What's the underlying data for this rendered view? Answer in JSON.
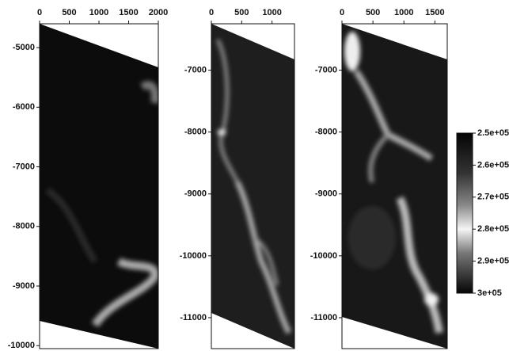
{
  "chart_data": [
    {
      "type": "image",
      "xlim": [
        0,
        2000
      ],
      "xticks": [
        0,
        500,
        1000,
        1500,
        2000
      ],
      "ylim": [
        -10050,
        -4600
      ],
      "yticks": [
        -5000,
        -6000,
        -7000,
        -8000,
        -9000,
        -10000
      ]
    },
    {
      "type": "image",
      "xlim": [
        0,
        1370
      ],
      "xticks": [
        0,
        500,
        1000
      ],
      "ylim": [
        -11500,
        -6250
      ],
      "yticks": [
        -7000,
        -8000,
        -9000,
        -10000,
        -11000
      ]
    },
    {
      "type": "image",
      "xlim": [
        0,
        1700
      ],
      "xticks": [
        0,
        500,
        1000,
        1500
      ],
      "ylim": [
        -11500,
        -6250
      ],
      "yticks": [
        -7000,
        -8000,
        -9000,
        -10000,
        -11000
      ]
    },
    {
      "type": "colorbar",
      "ylim": [
        300000,
        250000
      ],
      "yticks": [
        {
          "value": 250000,
          "label": "2.5e+05"
        },
        {
          "value": 260000,
          "label": "2.6e+05"
        },
        {
          "value": 270000,
          "label": "2.7e+05"
        },
        {
          "value": 280000,
          "label": "2.8e+05"
        },
        {
          "value": 290000,
          "label": "2.9e+05"
        },
        {
          "value": 300000,
          "label": "3e+05"
        }
      ]
    }
  ]
}
